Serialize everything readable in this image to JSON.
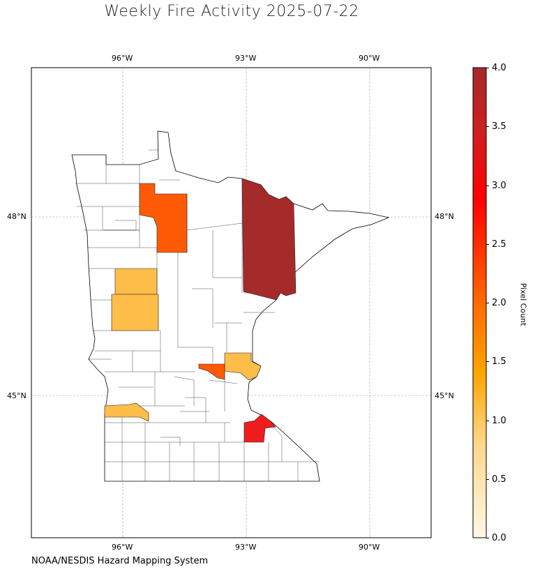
{
  "title": "Weekly Fire Activity 2025-07-22",
  "source": "NOAA/NESDIS Hazard Mapping System",
  "colorbar": {
    "label": "Pixel Count",
    "min": 0.0,
    "max": 4.0,
    "ticks": [
      "0.0",
      "0.5",
      "1.0",
      "1.5",
      "2.0",
      "2.5",
      "3.0",
      "3.5",
      "4.0"
    ],
    "stops": [
      "#fff8e6",
      "#ffcf6b",
      "#ffa500",
      "#ff6a00",
      "#ff0000",
      "#c82020",
      "#a52a2a"
    ]
  },
  "axes": {
    "lon_labels": [
      "96°W",
      "93°W",
      "90°W"
    ],
    "lat_labels": [
      "48°N",
      "45°N"
    ],
    "gridlines": true
  },
  "chart_data": {
    "type": "choropleth",
    "region": "Minnesota",
    "value_name": "Pixel Count",
    "counties_with_fire": [
      {
        "area": "northeast (large county)",
        "value": 4
      },
      {
        "area": "southeast (metro south)",
        "value": 3
      },
      {
        "area": "north-central (northwest block)",
        "value": 2
      },
      {
        "area": "metro west",
        "value": 2
      },
      {
        "area": "west-central upper",
        "value": 1
      },
      {
        "area": "west-central lower",
        "value": 1
      },
      {
        "area": "metro north",
        "value": 1
      },
      {
        "area": "southwest",
        "value": 1
      }
    ]
  }
}
